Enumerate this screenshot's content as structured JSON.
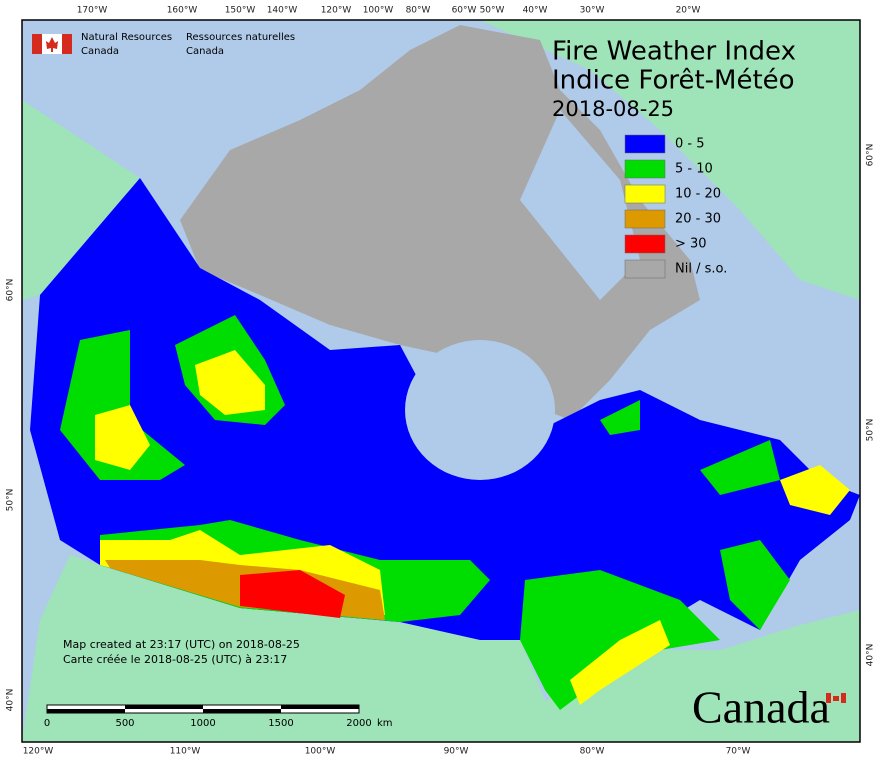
{
  "header": {
    "agency_en": [
      "Natural Resources",
      "Canada"
    ],
    "agency_fr": [
      "Ressources naturelles",
      "Canada"
    ]
  },
  "title": {
    "line1": "Fire Weather Index",
    "line2": "Indice Forêt-Météo",
    "date": "2018-08-25"
  },
  "legend": [
    {
      "label": "0 - 5",
      "color": "#0000ff"
    },
    {
      "label": "5 - 10",
      "color": "#00dd00"
    },
    {
      "label": "10 - 20",
      "color": "#ffff00"
    },
    {
      "label": "20 - 30",
      "color": "#dd9900"
    },
    {
      "label": "> 30",
      "color": "#ff0000"
    },
    {
      "label": "Nil / s.o.",
      "color": "#a8a8a8"
    }
  ],
  "graticule": {
    "top": [
      "170°W",
      "160°W",
      "150°W",
      "140°W",
      "120°W",
      "100°W",
      "80°W",
      "60°W",
      "50°W",
      "40°W",
      "30°W",
      "20°W"
    ],
    "bottom": [
      "120°W",
      "110°W",
      "100°W",
      "90°W",
      "80°W",
      "70°W"
    ],
    "left": [
      "60°N",
      "50°N",
      "40°N"
    ],
    "right": [
      "60°N",
      "50°N",
      "40°N"
    ]
  },
  "footer": {
    "created_en": "Map created at 23:17 (UTC) on 2018-08-25",
    "created_fr": "Carte créée le 2018-08-25 (UTC) à 23:17"
  },
  "scale_bar": {
    "labels": [
      "0",
      "500",
      "1000",
      "1500",
      "2000"
    ],
    "unit": "km"
  },
  "wordmark": "Canada"
}
